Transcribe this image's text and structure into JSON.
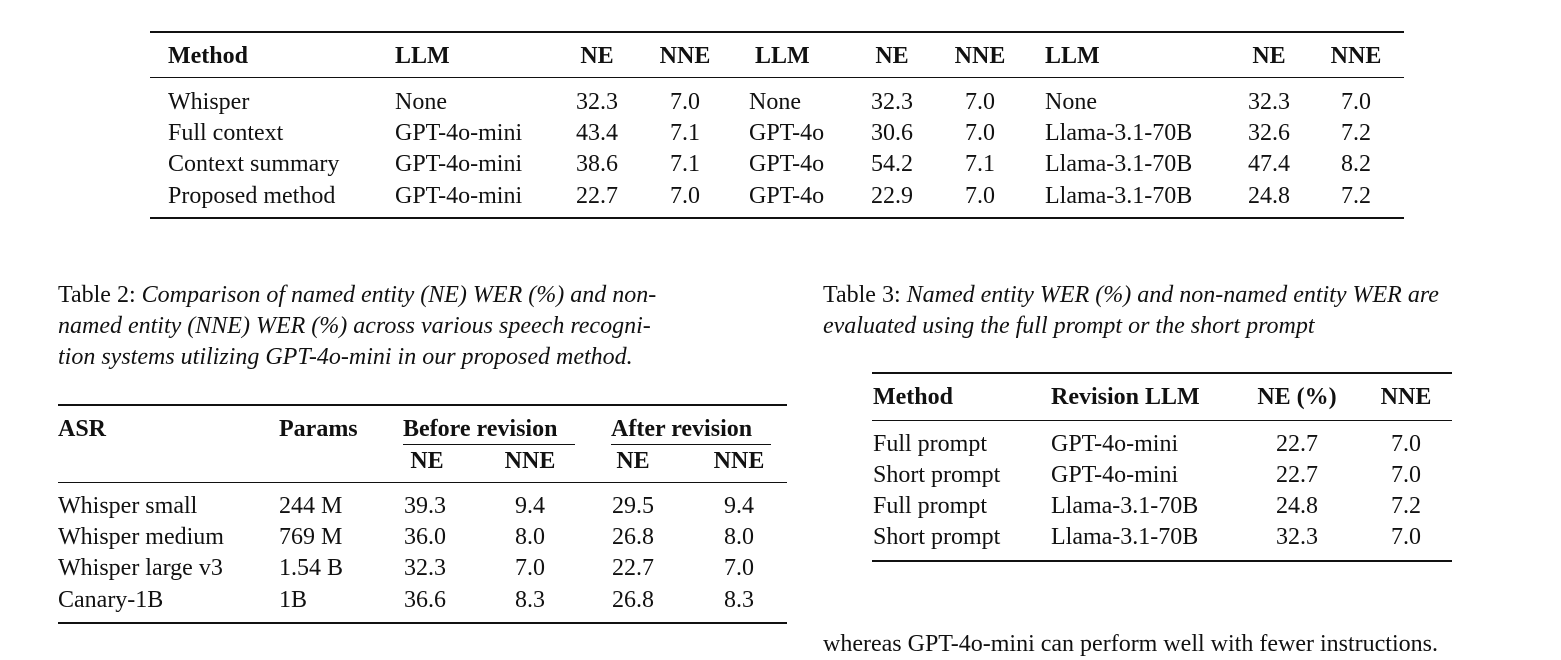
{
  "table1": {
    "headers": [
      "Method",
      "LLM",
      "NE",
      "NNE",
      "LLM",
      "NE",
      "NNE",
      "LLM",
      "NE",
      "NNE"
    ],
    "rows": [
      [
        "Whisper",
        "None",
        "32.3",
        "7.0",
        "None",
        "32.3",
        "7.0",
        "None",
        "32.3",
        "7.0"
      ],
      [
        "Full context",
        "GPT-4o-mini",
        "43.4",
        "7.1",
        "GPT-4o",
        "30.6",
        "7.0",
        "Llama-3.1-70B",
        "32.6",
        "7.2"
      ],
      [
        "Context summary",
        "GPT-4o-mini",
        "38.6",
        "7.1",
        "GPT-4o",
        "54.2",
        "7.1",
        "Llama-3.1-70B",
        "47.4",
        "8.2"
      ],
      [
        "Proposed method",
        "GPT-4o-mini",
        "22.7",
        "7.0",
        "GPT-4o",
        "22.9",
        "7.0",
        "Llama-3.1-70B",
        "24.8",
        "7.2"
      ]
    ]
  },
  "table2": {
    "caption_label": "Table 2:",
    "caption_lines": [
      "Comparison of named entity (NE) WER (%) and non-",
      "named entity (NNE) WER (%) across various speech recogni-",
      "tion systems utilizing GPT-4o-mini in our proposed method."
    ],
    "group_headers": [
      "ASR",
      "Params",
      "Before revision",
      "After revision"
    ],
    "sub_headers": [
      "NE",
      "NNE",
      "NE",
      "NNE"
    ],
    "rows": [
      [
        "Whisper small",
        "244 M",
        "39.3",
        "9.4",
        "29.5",
        "9.4"
      ],
      [
        "Whisper medium",
        "769 M",
        "36.0",
        "8.0",
        "26.8",
        "8.0"
      ],
      [
        "Whisper large v3",
        "1.54 B",
        "32.3",
        "7.0",
        "22.7",
        "7.0"
      ],
      [
        "Canary-1B",
        "1B",
        "36.6",
        "8.3",
        "26.8",
        "8.3"
      ]
    ]
  },
  "table3": {
    "caption_label": "Table 3:",
    "caption_lines": [
      "Named entity WER (%) and non-named entity WER are",
      "evaluated using the full prompt or the short prompt"
    ],
    "headers": [
      "Method",
      "Revision LLM",
      "NE (%)",
      "NNE"
    ],
    "rows": [
      [
        "Full prompt",
        "GPT-4o-mini",
        "22.7",
        "7.0"
      ],
      [
        "Short prompt",
        "GPT-4o-mini",
        "22.7",
        "7.0"
      ],
      [
        "Full prompt",
        "Llama-3.1-70B",
        "24.8",
        "7.2"
      ],
      [
        "Short prompt",
        "Llama-3.1-70B",
        "32.3",
        "7.0"
      ]
    ]
  },
  "body_text": "whereas GPT-4o-mini can perform well with fewer instructions."
}
